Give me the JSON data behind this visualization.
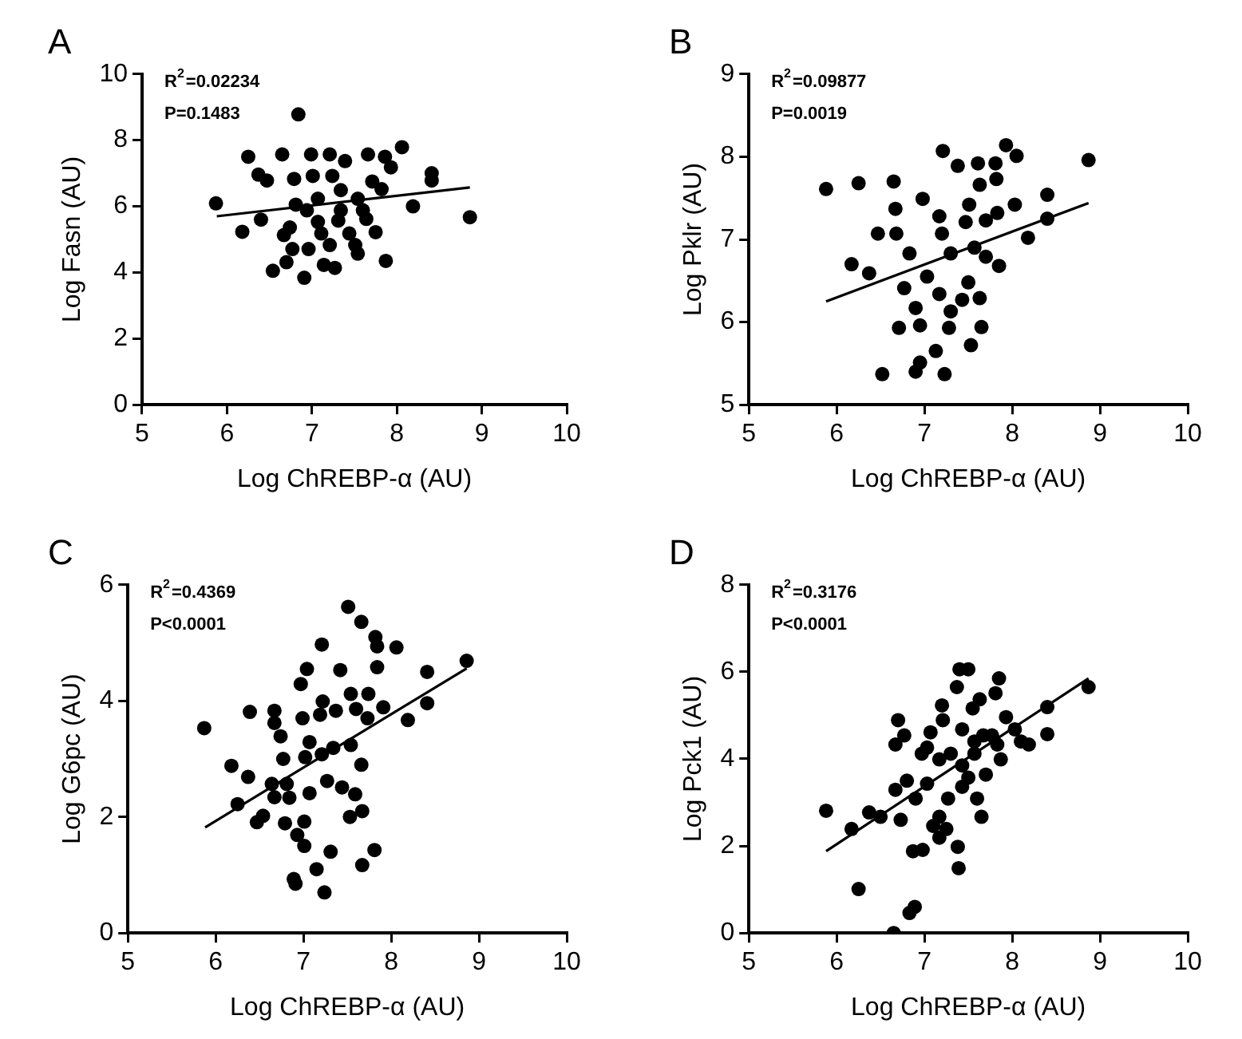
{
  "chart_data": [
    {
      "type": "scatter",
      "title": "A",
      "xlabel": "Log ChREBP-α (AU)",
      "ylabel": "Log Fasn (AU)",
      "annotations": [
        "R$^{2}$=0.02234",
        "P=0.1483"
      ],
      "xlim": [
        5,
        10
      ],
      "xticks": [
        5,
        6,
        7,
        8,
        9,
        10
      ],
      "ylim": [
        0,
        10
      ],
      "yticks": [
        0,
        2,
        4,
        6,
        8,
        10
      ],
      "grid": false,
      "legend": false,
      "series": [
        {
          "type": "scatter",
          "marker": "circle",
          "color": "#000000",
          "x": [
            5.87,
            6.18,
            6.25,
            6.37,
            6.47,
            6.4,
            6.65,
            6.54,
            6.7,
            6.77,
            6.84,
            6.79,
            6.67,
            6.91,
            6.96,
            6.99,
            7.01,
            6.94,
            7.07,
            7.11,
            7.14,
            7.21,
            7.21,
            7.27,
            7.31,
            7.39,
            7.44,
            7.51,
            7.54,
            7.54,
            7.64,
            7.66,
            7.71,
            7.75,
            7.82,
            7.86,
            7.87,
            7.93,
            8.06,
            8.19,
            8.41,
            8.41,
            8.86,
            7.24,
            7.34,
            6.81,
            7.6,
            7.07,
            7.34,
            6.74
          ],
          "values": [
            6.09,
            5.23,
            7.5,
            6.96,
            6.78,
            5.6,
            7.57,
            4.05,
            4.31,
            4.71,
            8.78,
            6.83,
            5.13,
            3.84,
            4.71,
            7.57,
            6.92,
            5.88,
            6.23,
            5.18,
            4.23,
            7.57,
            4.83,
            4.14,
            5.57,
            7.37,
            5.18,
            4.83,
            4.57,
            6.23,
            5.62,
            7.57,
            6.75,
            5.22,
            6.52,
            7.5,
            4.35,
            7.18,
            7.79,
            6.0,
            6.78,
            7.0,
            5.67,
            6.92,
            6.49,
            6.05,
            5.88,
            5.53,
            5.88,
            5.36
          ]
        },
        {
          "type": "line",
          "marker": "none",
          "color": "#000000",
          "x": [
            5.88,
            8.86
          ],
          "values": [
            5.7,
            6.57
          ]
        }
      ]
    },
    {
      "type": "scatter",
      "title": "B",
      "xlabel": "Log ChREBP-α (AU)",
      "ylabel": "Log Pklr (AU)",
      "annotations": [
        "R$^{2}$=0.09877",
        "P=0.0019"
      ],
      "xlim": [
        5,
        10
      ],
      "xticks": [
        5,
        6,
        7,
        8,
        9,
        10
      ],
      "ylim": [
        5,
        9
      ],
      "yticks": [
        5,
        6,
        7,
        8,
        9
      ],
      "grid": false,
      "legend": false,
      "series": [
        {
          "type": "scatter",
          "marker": "circle",
          "color": "#000000",
          "x": [
            5.88,
            6.25,
            6.17,
            6.37,
            6.47,
            6.65,
            6.67,
            6.68,
            6.71,
            6.52,
            6.9,
            6.95,
            7.13,
            7.23,
            7.21,
            7.38,
            7.61,
            7.81,
            7.93,
            8.05,
            8.87,
            8.4,
            8.4,
            8.18,
            8.03,
            7.83,
            7.82,
            7.63,
            7.51,
            7.47,
            7.7,
            7.85,
            7.65,
            7.53,
            7.28,
            6.95,
            7.03,
            6.9,
            7.17,
            7.3,
            7.43,
            7.63,
            6.83,
            6.98,
            7.17,
            7.2,
            7.3,
            7.57,
            7.7,
            6.77,
            7.5
          ],
          "values": [
            7.61,
            7.68,
            6.7,
            6.59,
            7.07,
            7.7,
            7.37,
            7.07,
            5.93,
            5.37,
            5.4,
            5.51,
            5.65,
            5.37,
            8.07,
            7.89,
            7.92,
            7.92,
            8.14,
            8.01,
            7.96,
            7.54,
            7.25,
            7.02,
            7.42,
            7.32,
            7.73,
            7.66,
            7.42,
            7.21,
            7.23,
            6.68,
            5.94,
            5.72,
            5.93,
            5.96,
            6.55,
            6.17,
            6.34,
            6.13,
            6.27,
            6.29,
            6.83,
            7.49,
            7.28,
            7.07,
            6.83,
            6.9,
            6.79,
            6.41,
            6.48
          ]
        },
        {
          "type": "line",
          "marker": "none",
          "color": "#000000",
          "x": [
            5.88,
            8.87
          ],
          "values": [
            6.25,
            7.44
          ]
        }
      ]
    },
    {
      "type": "scatter",
      "title": "C",
      "xlabel": "Log ChREBP-α (AU)",
      "ylabel": "Log G6pc (AU)",
      "annotations": [
        "R$^{2}$=0.4369",
        "P<0.0001"
      ],
      "xlim": [
        5,
        10
      ],
      "xticks": [
        5,
        6,
        7,
        8,
        9,
        10
      ],
      "ylim": [
        0,
        6
      ],
      "yticks": [
        0,
        2,
        4,
        6
      ],
      "grid": false,
      "legend": false,
      "series": [
        {
          "type": "scatter",
          "marker": "circle",
          "color": "#000000",
          "x": [
            5.87,
            6.18,
            6.25,
            6.37,
            6.39,
            6.47,
            6.54,
            6.67,
            6.67,
            6.74,
            6.77,
            6.64,
            6.67,
            6.79,
            6.81,
            6.84,
            6.89,
            6.91,
            6.93,
            6.97,
            7.01,
            6.99,
            7.01,
            7.04,
            7.02,
            7.07,
            7.15,
            7.21,
            7.19,
            7.22,
            7.24,
            7.31,
            7.21,
            7.27,
            7.37,
            7.42,
            7.44,
            7.51,
            7.54,
            7.54,
            7.53,
            7.59,
            7.66,
            7.66,
            7.67,
            7.67,
            7.73,
            7.74,
            7.82,
            7.84,
            7.84,
            7.81,
            7.91,
            8.06,
            8.19,
            8.41,
            8.41,
            8.86,
            7.34,
            7.6,
            7.07
          ],
          "values": [
            3.53,
            2.88,
            2.22,
            2.69,
            3.81,
            1.91,
            2.02,
            3.83,
            3.62,
            3.39,
            3.0,
            2.57,
            2.34,
            1.89,
            2.57,
            2.33,
            0.93,
            0.85,
            1.69,
            4.29,
            1.92,
            3.7,
            1.5,
            4.55,
            3.03,
            2.41,
            1.1,
            4.97,
            3.76,
            3.99,
            0.7,
            1.4,
            3.08,
            2.62,
            3.83,
            4.53,
            2.51,
            5.62,
            4.12,
            3.24,
            2.0,
            2.39,
            5.36,
            2.9,
            2.1,
            1.17,
            3.7,
            4.12,
            5.1,
            4.94,
            4.58,
            1.43,
            3.89,
            4.92,
            3.67,
            4.5,
            3.96,
            4.69,
            3.19,
            3.86,
            3.29
          ]
        },
        {
          "type": "line",
          "marker": "none",
          "color": "#000000",
          "x": [
            5.88,
            8.86
          ],
          "values": [
            1.82,
            4.56
          ]
        }
      ]
    },
    {
      "type": "scatter",
      "title": "D",
      "xlabel": "Log ChREBP-α (AU)",
      "ylabel": "Log Pck1 (AU)",
      "annotations": [
        "R$^{2}$=0.3176",
        "P<0.0001"
      ],
      "xlim": [
        5,
        10
      ],
      "xticks": [
        5,
        6,
        7,
        8,
        9,
        10
      ],
      "ylim": [
        0,
        8
      ],
      "yticks": [
        0,
        2,
        4,
        6,
        8
      ],
      "grid": false,
      "legend": false,
      "series": [
        {
          "type": "scatter",
          "marker": "circle",
          "color": "#000000",
          "x": [
            5.88,
            6.17,
            6.25,
            6.37,
            6.5,
            6.65,
            6.83,
            6.89,
            6.7,
            6.67,
            6.77,
            6.67,
            6.73,
            6.8,
            6.87,
            6.98,
            6.9,
            6.97,
            7.03,
            7.07,
            7.1,
            7.17,
            7.2,
            7.21,
            7.27,
            7.25,
            7.37,
            7.4,
            7.5,
            7.38,
            7.39,
            7.43,
            7.43,
            7.5,
            7.57,
            7.55,
            7.6,
            7.65,
            7.67,
            7.63,
            7.7,
            7.77,
            7.81,
            7.85,
            7.83,
            7.87,
            7.93,
            8.03,
            8.1,
            8.19,
            8.4,
            8.4,
            8.87,
            7.17,
            7.3,
            7.03,
            7.43,
            7.17,
            7.57
          ],
          "values": [
            2.81,
            2.39,
            1.01,
            2.77,
            2.67,
            0.0,
            0.46,
            0.6,
            4.89,
            4.33,
            4.54,
            3.29,
            2.6,
            3.5,
            1.88,
            1.91,
            3.09,
            4.12,
            3.43,
            4.61,
            2.46,
            2.19,
            5.23,
            4.89,
            3.09,
            2.39,
            5.65,
            6.06,
            6.06,
            1.98,
            1.49,
            3.36,
            4.68,
            3.57,
            4.12,
            5.16,
            3.09,
            2.67,
            4.54,
            5.37,
            3.64,
            4.54,
            5.51,
            5.85,
            4.33,
            3.99,
            4.96,
            4.68,
            4.4,
            4.33,
            5.19,
            4.57,
            5.65,
            3.99,
            4.12,
            4.26,
            3.85,
            2.67,
            4.4
          ]
        },
        {
          "type": "line",
          "marker": "none",
          "color": "#000000",
          "x": [
            5.88,
            8.87
          ],
          "values": [
            1.88,
            5.85
          ]
        }
      ]
    }
  ]
}
